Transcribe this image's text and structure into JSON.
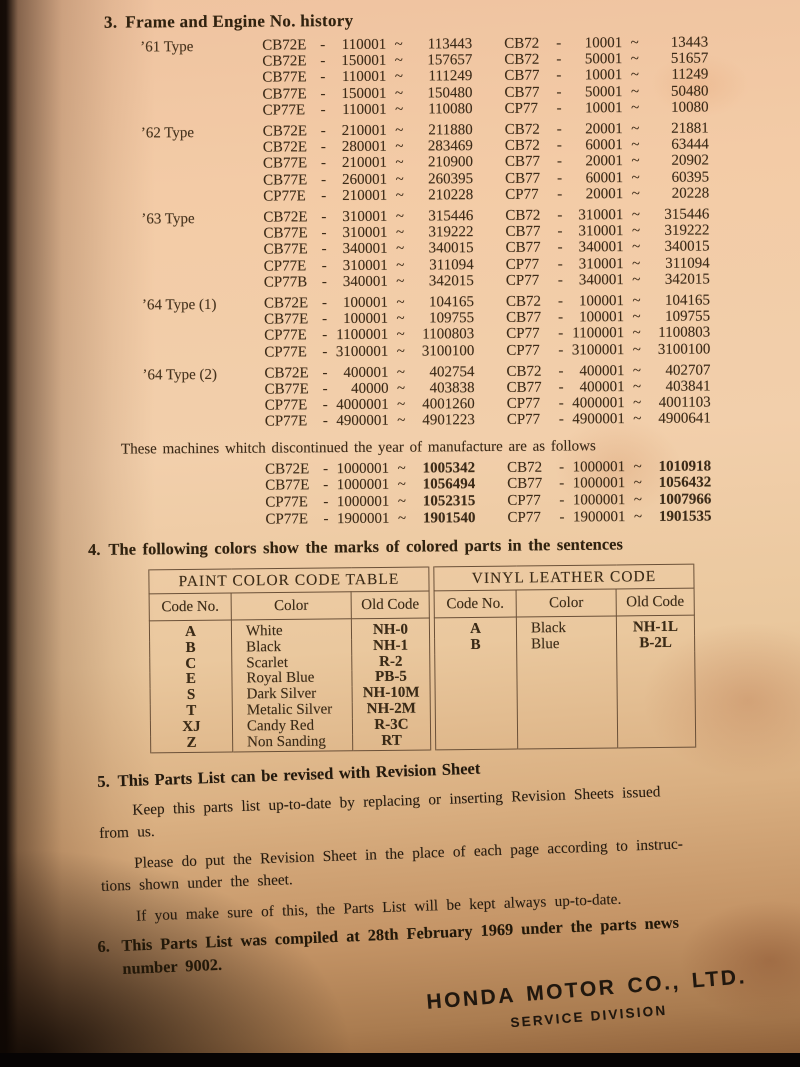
{
  "frame_engine": {
    "section_no": "3.",
    "title": "Frame and Engine No. history",
    "sep_dash": "-",
    "sep_tilde": "~",
    "groups": [
      {
        "label": "’61 Type",
        "rows": [
          {
            "em": "CB72E",
            "ef": "110001",
            "et": "113443",
            "fm": "CB72",
            "ff": "10001",
            "ft": "13443"
          },
          {
            "em": "CB72E",
            "ef": "150001",
            "et": "157657",
            "fm": "CB72",
            "ff": "50001",
            "ft": "51657"
          },
          {
            "em": "CB77E",
            "ef": "110001",
            "et": "111249",
            "fm": "CB77",
            "ff": "10001",
            "ft": "11249"
          },
          {
            "em": "CB77E",
            "ef": "150001",
            "et": "150480",
            "fm": "CB77",
            "ff": "50001",
            "ft": "50480"
          },
          {
            "em": "CP77E",
            "ef": "110001",
            "et": "110080",
            "fm": "CP77",
            "ff": "10001",
            "ft": "10080"
          }
        ]
      },
      {
        "label": "’62 Type",
        "rows": [
          {
            "em": "CB72E",
            "ef": "210001",
            "et": "211880",
            "fm": "CB72",
            "ff": "20001",
            "ft": "21881"
          },
          {
            "em": "CB72E",
            "ef": "280001",
            "et": "283469",
            "fm": "CB72",
            "ff": "60001",
            "ft": "63444"
          },
          {
            "em": "CB77E",
            "ef": "210001",
            "et": "210900",
            "fm": "CB77",
            "ff": "20001",
            "ft": "20902"
          },
          {
            "em": "CB77E",
            "ef": "260001",
            "et": "260395",
            "fm": "CB77",
            "ff": "60001",
            "ft": "60395"
          },
          {
            "em": "CP77E",
            "ef": "210001",
            "et": "210228",
            "fm": "CP77",
            "ff": "20001",
            "ft": "20228"
          }
        ]
      },
      {
        "label": "’63 Type",
        "rows": [
          {
            "em": "CB72E",
            "ef": "310001",
            "et": "315446",
            "fm": "CB72",
            "ff": "310001",
            "ft": "315446"
          },
          {
            "em": "CB77E",
            "ef": "310001",
            "et": "319222",
            "fm": "CB77",
            "ff": "310001",
            "ft": "319222"
          },
          {
            "em": "CB77E",
            "ef": "340001",
            "et": "340015",
            "fm": "CB77",
            "ff": "340001",
            "ft": "340015"
          },
          {
            "em": "CP77E",
            "ef": "310001",
            "et": "311094",
            "fm": "CP77",
            "ff": "310001",
            "ft": "311094"
          },
          {
            "em": "CP77B",
            "ef": "340001",
            "et": "342015",
            "fm": "CP77",
            "ff": "340001",
            "ft": "342015"
          }
        ]
      },
      {
        "label": "’64 Type (1)",
        "rows": [
          {
            "em": "CB72E",
            "ef": "100001",
            "et": "104165",
            "fm": "CB72",
            "ff": "100001",
            "ft": "104165"
          },
          {
            "em": "CB77E",
            "ef": "100001",
            "et": "109755",
            "fm": "CB77",
            "ff": "100001",
            "ft": "109755"
          },
          {
            "em": "CP77E",
            "ef": "1100001",
            "et": "1100803",
            "fm": "CP77",
            "ff": "1100001",
            "ft": "1100803"
          },
          {
            "em": "CP77E",
            "ef": "3100001",
            "et": "3100100",
            "fm": "CP77",
            "ff": "3100001",
            "ft": "3100100"
          }
        ]
      },
      {
        "label": "’64 Type (2)",
        "rows": [
          {
            "em": "CB72E",
            "ef": "400001",
            "et": "402754",
            "fm": "CB72",
            "ff": "400001",
            "ft": "402707"
          },
          {
            "em": "CB77E",
            "ef": "40000",
            "et": "403838",
            "fm": "CB77",
            "ff": "400001",
            "ft": "403841"
          },
          {
            "em": "CP77E",
            "ef": "4000001",
            "et": "4001260",
            "fm": "CP77",
            "ff": "4000001",
            "ft": "4001103"
          },
          {
            "em": "CP77E",
            "ef": "4900001",
            "et": "4901223",
            "fm": "CP77",
            "ff": "4900001",
            "ft": "4900641"
          }
        ]
      }
    ],
    "discontinued_note": "These machines whitch discontinued the year of manufacture are as follows",
    "discontinued_rows": [
      {
        "em": "CB72E",
        "ef": "1000001",
        "et": "1005342",
        "fm": "CB72",
        "ff": "1000001",
        "ft": "1010918"
      },
      {
        "em": "CB77E",
        "ef": "1000001",
        "et": "1056494",
        "fm": "CB77",
        "ff": "1000001",
        "ft": "1056432"
      },
      {
        "em": "CP77E",
        "ef": "1000001",
        "et": "1052315",
        "fm": "CP77",
        "ff": "1000001",
        "ft": "1007966"
      },
      {
        "em": "CP77E",
        "ef": "1900001",
        "et": "1901540",
        "fm": "CP77",
        "ff": "1900001",
        "ft": "1901535"
      }
    ]
  },
  "colors_section": {
    "section_no": "4.",
    "title": "The following colors show the marks of colored parts in the sentences",
    "paint_table": {
      "title": "PAINT COLOR CODE TABLE",
      "headers": [
        "Code No.",
        "Color",
        "Old Code"
      ],
      "rows": [
        [
          "A",
          "White",
          "NH-0"
        ],
        [
          "B",
          "Black",
          "NH-1"
        ],
        [
          "C",
          "Scarlet",
          "R-2"
        ],
        [
          "E",
          "Royal Blue",
          "PB-5"
        ],
        [
          "S",
          "Dark Silver",
          "NH-10M"
        ],
        [
          "T",
          "Metalic Silver",
          "NH-2M"
        ],
        [
          "XJ",
          "Candy Red",
          "R-3C"
        ],
        [
          "Z",
          "Non Sanding",
          "RT"
        ]
      ]
    },
    "vinyl_table": {
      "title": "VINYL LEATHER CODE",
      "headers": [
        "Code No.",
        "Color",
        "Old Code"
      ],
      "rows": [
        [
          "A",
          "Black",
          "NH-1L"
        ],
        [
          "B",
          "Blue",
          "B-2L"
        ]
      ]
    }
  },
  "revision_section": {
    "section_no": "5.",
    "title": "This Parts List can be revised with Revision Sheet",
    "paragraphs": [
      "Keep this parts list up-to-date by replacing or inserting Revision Sheets issued\nfrom us.",
      "Please do put the Revision Sheet in the place of each page according to instruc-\ntions shown under the sheet.",
      "If you make sure of this, the Parts List will be kept always up-to-date."
    ]
  },
  "compiled_section": {
    "section_no": "6.",
    "text": "This Parts List was compiled at 28th February 1969 under the parts news\nnumber 9002."
  },
  "footer": {
    "company": "HONDA MOTOR CO., LTD.",
    "division": "SERVICE DIVISION"
  }
}
